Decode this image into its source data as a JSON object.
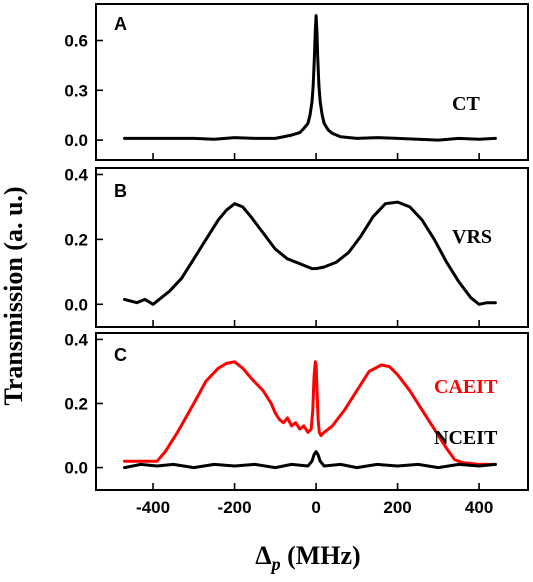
{
  "figure": {
    "ylabel": "Transmission (a. u.)",
    "xlabel_symbol": "Δ",
    "xlabel_sub": "p",
    "xlabel_unit": " (MHz)"
  },
  "chart_data": [
    {
      "type": "line",
      "panel": "A",
      "xlim": [
        -540,
        520
      ],
      "ylim": [
        -0.12,
        0.82
      ],
      "xticks": [
        -400,
        -200,
        0,
        200,
        400
      ],
      "yticks": [
        0.0,
        0.3,
        0.6
      ],
      "ytick_labels": [
        "0.0",
        "0.3",
        "0.6"
      ],
      "show_xtick_labels": false,
      "series": [
        {
          "name": "CT",
          "color": "#000000",
          "x": [
            -470,
            -400,
            -300,
            -250,
            -200,
            -150,
            -100,
            -60,
            -40,
            -30,
            -20,
            -15,
            -10,
            -7,
            -4,
            -2,
            0,
            2,
            4,
            7,
            10,
            15,
            20,
            30,
            40,
            60,
            100,
            150,
            200,
            250,
            300,
            350,
            400,
            440
          ],
          "y": [
            0.01,
            0.01,
            0.01,
            0.005,
            0.015,
            0.01,
            0.01,
            0.03,
            0.045,
            0.07,
            0.1,
            0.15,
            0.23,
            0.33,
            0.5,
            0.66,
            0.75,
            0.66,
            0.5,
            0.33,
            0.23,
            0.15,
            0.1,
            0.06,
            0.04,
            0.02,
            0.01,
            0.015,
            0.01,
            0.005,
            0.0,
            0.01,
            0.005,
            0.01
          ]
        }
      ]
    },
    {
      "type": "line",
      "panel": "B",
      "xlim": [
        -540,
        520
      ],
      "ylim": [
        -0.07,
        0.42
      ],
      "xticks": [
        -400,
        -200,
        0,
        200,
        400
      ],
      "yticks": [
        0.0,
        0.2,
        0.4
      ],
      "ytick_labels": [
        "0.0",
        "0.2",
        "0.4"
      ],
      "show_xtick_labels": false,
      "series": [
        {
          "name": "VRS",
          "color": "#000000",
          "x": [
            -470,
            -440,
            -420,
            -400,
            -380,
            -360,
            -330,
            -300,
            -270,
            -240,
            -220,
            -200,
            -180,
            -160,
            -130,
            -100,
            -70,
            -40,
            -10,
            0,
            20,
            50,
            80,
            110,
            140,
            170,
            200,
            230,
            260,
            290,
            320,
            350,
            380,
            400,
            420,
            440
          ],
          "y": [
            0.015,
            0.005,
            0.015,
            0.0,
            0.02,
            0.04,
            0.08,
            0.14,
            0.2,
            0.26,
            0.29,
            0.31,
            0.3,
            0.27,
            0.22,
            0.17,
            0.14,
            0.125,
            0.11,
            0.11,
            0.115,
            0.13,
            0.16,
            0.21,
            0.27,
            0.31,
            0.315,
            0.3,
            0.26,
            0.2,
            0.13,
            0.07,
            0.02,
            0.0,
            0.005,
            0.005
          ]
        }
      ]
    },
    {
      "type": "line",
      "panel": "C",
      "xlim": [
        -540,
        520
      ],
      "ylim": [
        -0.07,
        0.42
      ],
      "xticks": [
        -400,
        -200,
        0,
        200,
        400
      ],
      "xtick_labels": [
        "-400",
        "-200",
        "0",
        "200",
        "400"
      ],
      "yticks": [
        0.0,
        0.2,
        0.4
      ],
      "ytick_labels": [
        "0.0",
        "0.2",
        "0.4"
      ],
      "show_xtick_labels": true,
      "series": [
        {
          "name": "CAEIT",
          "color": "#ff0000",
          "x": [
            -470,
            -420,
            -390,
            -370,
            -340,
            -300,
            -270,
            -240,
            -220,
            -200,
            -180,
            -160,
            -130,
            -110,
            -100,
            -90,
            -80,
            -70,
            -60,
            -50,
            -40,
            -30,
            -20,
            -12,
            -8,
            -5,
            -2,
            0,
            2,
            5,
            8,
            12,
            20,
            40,
            70,
            100,
            130,
            160,
            180,
            200,
            230,
            260,
            290,
            320,
            340,
            360,
            400,
            440
          ],
          "y": [
            0.02,
            0.02,
            0.02,
            0.05,
            0.11,
            0.2,
            0.27,
            0.31,
            0.325,
            0.33,
            0.31,
            0.28,
            0.24,
            0.2,
            0.17,
            0.15,
            0.14,
            0.155,
            0.13,
            0.14,
            0.12,
            0.13,
            0.11,
            0.12,
            0.18,
            0.28,
            0.33,
            0.32,
            0.25,
            0.15,
            0.11,
            0.1,
            0.11,
            0.13,
            0.18,
            0.24,
            0.3,
            0.32,
            0.315,
            0.29,
            0.24,
            0.18,
            0.12,
            0.06,
            0.025,
            0.015,
            0.01,
            0.01
          ]
        },
        {
          "name": "NCEIT",
          "color": "#000000",
          "x": [
            -470,
            -430,
            -390,
            -350,
            -300,
            -250,
            -200,
            -150,
            -100,
            -60,
            -20,
            -10,
            -5,
            0,
            5,
            10,
            20,
            60,
            100,
            150,
            200,
            250,
            300,
            350,
            400,
            440
          ],
          "y": [
            0.0,
            0.01,
            0.005,
            0.01,
            0.0,
            0.01,
            0.005,
            0.01,
            0.0,
            0.01,
            0.005,
            0.02,
            0.04,
            0.05,
            0.04,
            0.02,
            0.005,
            0.01,
            0.0,
            0.01,
            0.005,
            0.01,
            0.0,
            0.01,
            0.005,
            0.01
          ]
        }
      ]
    }
  ]
}
